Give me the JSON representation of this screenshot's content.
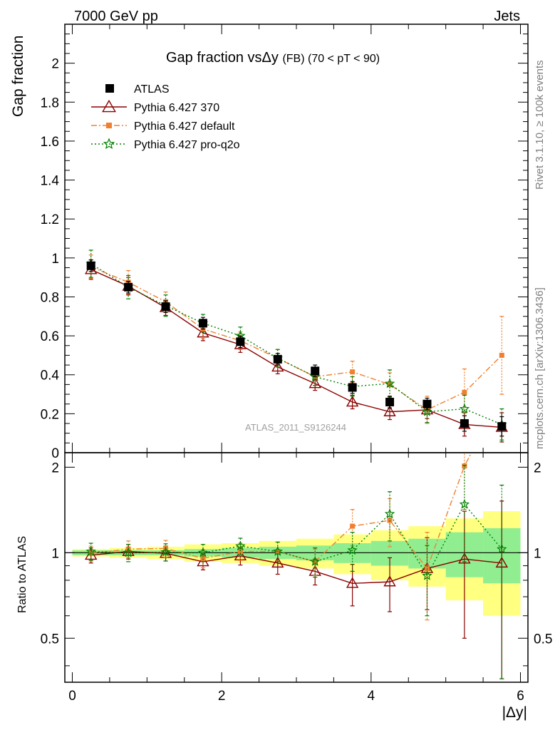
{
  "header": {
    "left": "7000 GeV pp",
    "right": "Jets"
  },
  "side_labels": {
    "rivet": "Rivet 3.1.10, ≥ 100k events",
    "mcplots": "mcplots.cern.ch [arXiv:1306.3436]"
  },
  "chart_data": {
    "type": "scatter",
    "title": "Gap fraction vsΔy (FB) (70 < pT <  90)",
    "title_main": "Gap fraction vsΔy",
    "title_small": "(FB) (70 < pT <  90)",
    "watermark": "ATLAS_2011_S9126244",
    "xlabel": "|Δy|",
    "ylabel_main": "Gap fraction",
    "ylabel_ratio": "Ratio to ATLAS",
    "xlim": [
      -0.1,
      6.1
    ],
    "ylim_main": [
      0,
      2.2
    ],
    "ylim_ratio": [
      0.35,
      2.25
    ],
    "x_ticks": [
      0,
      2,
      4,
      6
    ],
    "x_tick_labels": [
      "0",
      "2",
      "4",
      "6"
    ],
    "y_ticks_main": [
      0,
      0.2,
      0.4,
      0.6,
      0.8,
      1,
      1.2,
      1.4,
      1.6,
      1.8,
      2
    ],
    "y_tick_labels_main": [
      "0",
      "0.2",
      "0.4",
      "0.6",
      "0.8",
      "1",
      "1.2",
      "1.4",
      "1.6",
      "1.8",
      "2"
    ],
    "y_ticks_ratio": [
      0.5,
      1,
      2
    ],
    "y_tick_labels_ratio": [
      "0.5",
      "1",
      "2"
    ],
    "ratio_scale": "log",
    "x": [
      0.25,
      0.75,
      1.25,
      1.75,
      2.25,
      2.75,
      3.25,
      3.75,
      4.25,
      4.75,
      5.25,
      5.75
    ],
    "x_edges": [
      0,
      0.5,
      1,
      1.5,
      2,
      2.5,
      3,
      3.5,
      4,
      4.5,
      5,
      5.5,
      6
    ],
    "legend_position": "top-left",
    "data": {
      "name": "ATLAS",
      "color": "#000000",
      "values": [
        0.96,
        0.85,
        0.75,
        0.665,
        0.57,
        0.48,
        0.42,
        0.335,
        0.26,
        0.25,
        0.15,
        0.135
      ],
      "errors": [
        0.03,
        0.03,
        0.03,
        0.03,
        0.03,
        0.03,
        0.03,
        0.03,
        0.03,
        0.03,
        0.04,
        0.05
      ],
      "band_stat": [
        0.02,
        0.02,
        0.02,
        0.03,
        0.04,
        0.05,
        0.06,
        0.08,
        0.1,
        0.12,
        0.18,
        0.22
      ],
      "band_total": [
        0.03,
        0.04,
        0.05,
        0.07,
        0.08,
        0.1,
        0.12,
        0.16,
        0.2,
        0.24,
        0.32,
        0.4
      ]
    },
    "series": [
      {
        "name": "Pythia 6.427 370",
        "color": "#8b0000",
        "marker": "open-triangle",
        "dash": "",
        "values": [
          0.94,
          0.855,
          0.745,
          0.615,
          0.555,
          0.44,
          0.355,
          0.26,
          0.21,
          0.22,
          0.145,
          0.13
        ],
        "errors": [
          0.05,
          0.045,
          0.04,
          0.04,
          0.04,
          0.035,
          0.035,
          0.035,
          0.04,
          0.045,
          0.06,
          0.075
        ],
        "ratio": [
          0.98,
          1.01,
          0.995,
          0.93,
          0.975,
          0.92,
          0.86,
          0.78,
          0.79,
          0.88,
          0.95,
          0.92
        ],
        "ratio_errors": [
          0.06,
          0.06,
          0.06,
          0.06,
          0.07,
          0.08,
          0.09,
          0.13,
          0.17,
          0.25,
          0.45,
          0.6
        ]
      },
      {
        "name": "Pythia 6.427 default",
        "color": "#f08030",
        "marker": "filled-square",
        "dash": "8,3,2,3",
        "values": [
          0.955,
          0.875,
          0.775,
          0.635,
          0.575,
          0.485,
          0.39,
          0.415,
          0.35,
          0.22,
          0.31,
          0.5
        ],
        "errors": [
          0.06,
          0.06,
          0.05,
          0.05,
          0.045,
          0.045,
          0.045,
          0.055,
          0.06,
          0.07,
          0.12,
          0.2
        ],
        "ratio": [
          0.995,
          1.03,
          1.035,
          0.955,
          1.01,
          1.01,
          0.93,
          1.24,
          1.3,
          0.88,
          2.02,
          3.6
        ],
        "ratio_errors": [
          0.06,
          0.07,
          0.07,
          0.07,
          0.07,
          0.08,
          0.1,
          0.18,
          0.25,
          0.3,
          0.6,
          1.2
        ]
      },
      {
        "name": "Pythia 6.427 pro-q2o",
        "color": "#008000",
        "marker": "star",
        "dash": "2,3",
        "values": [
          0.97,
          0.85,
          0.755,
          0.665,
          0.6,
          0.485,
          0.39,
          0.34,
          0.355,
          0.21,
          0.225,
          0.145
        ],
        "errors": [
          0.07,
          0.06,
          0.055,
          0.045,
          0.045,
          0.045,
          0.045,
          0.05,
          0.07,
          0.055,
          0.07,
          0.08
        ],
        "ratio": [
          1.01,
          1.0,
          1.005,
          1.0,
          1.055,
          1.01,
          0.93,
          1.02,
          1.37,
          0.83,
          1.48,
          1.03
        ],
        "ratio_errors": [
          0.07,
          0.07,
          0.07,
          0.07,
          0.07,
          0.08,
          0.11,
          0.16,
          0.27,
          0.23,
          0.55,
          0.7
        ]
      }
    ]
  }
}
